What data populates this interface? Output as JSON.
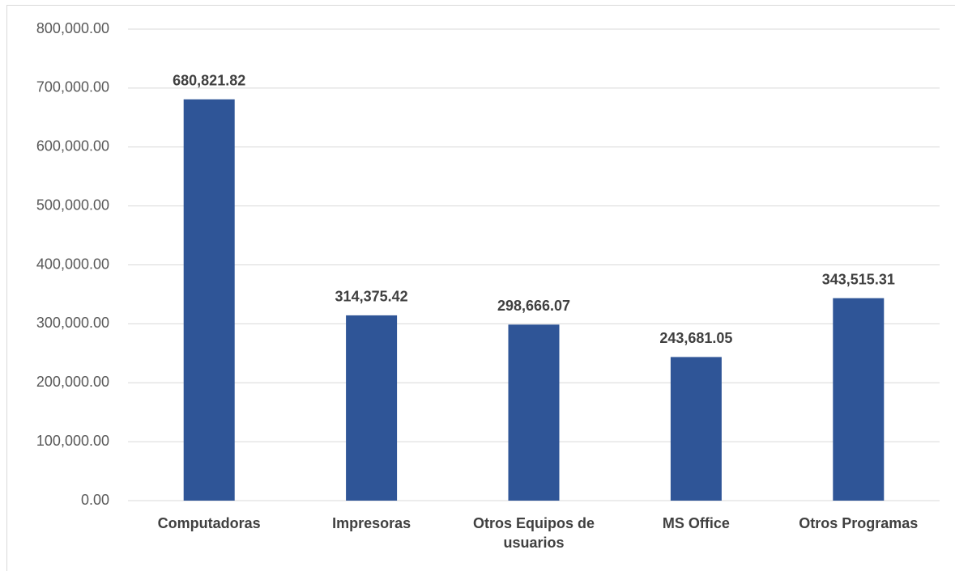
{
  "chart_data": {
    "type": "bar",
    "categories": [
      "Computadoras",
      "Impresoras",
      "Otros Equipos de usuarios",
      "MS Office",
      "Otros Programas"
    ],
    "values": [
      680821.82,
      314375.42,
      298666.07,
      243681.05,
      343515.31
    ],
    "value_labels": [
      "680,821.82",
      "314,375.42",
      "298,666.07",
      "243,681.05",
      "343,515.31"
    ],
    "color": "#2f5597",
    "ylim": [
      0,
      800000
    ],
    "yticks": [
      {
        "value": 0,
        "label": "0.00"
      },
      {
        "value": 100000,
        "label": "100,000.00"
      },
      {
        "value": 200000,
        "label": "200,000.00"
      },
      {
        "value": 300000,
        "label": "300,000.00"
      },
      {
        "value": 400000,
        "label": "400,000.00"
      },
      {
        "value": 500000,
        "label": "500,000.00"
      },
      {
        "value": 600000,
        "label": "600,000.00"
      },
      {
        "value": 700000,
        "label": "700,000.00"
      },
      {
        "value": 800000,
        "label": "800,000.00"
      }
    ],
    "grid": true
  }
}
